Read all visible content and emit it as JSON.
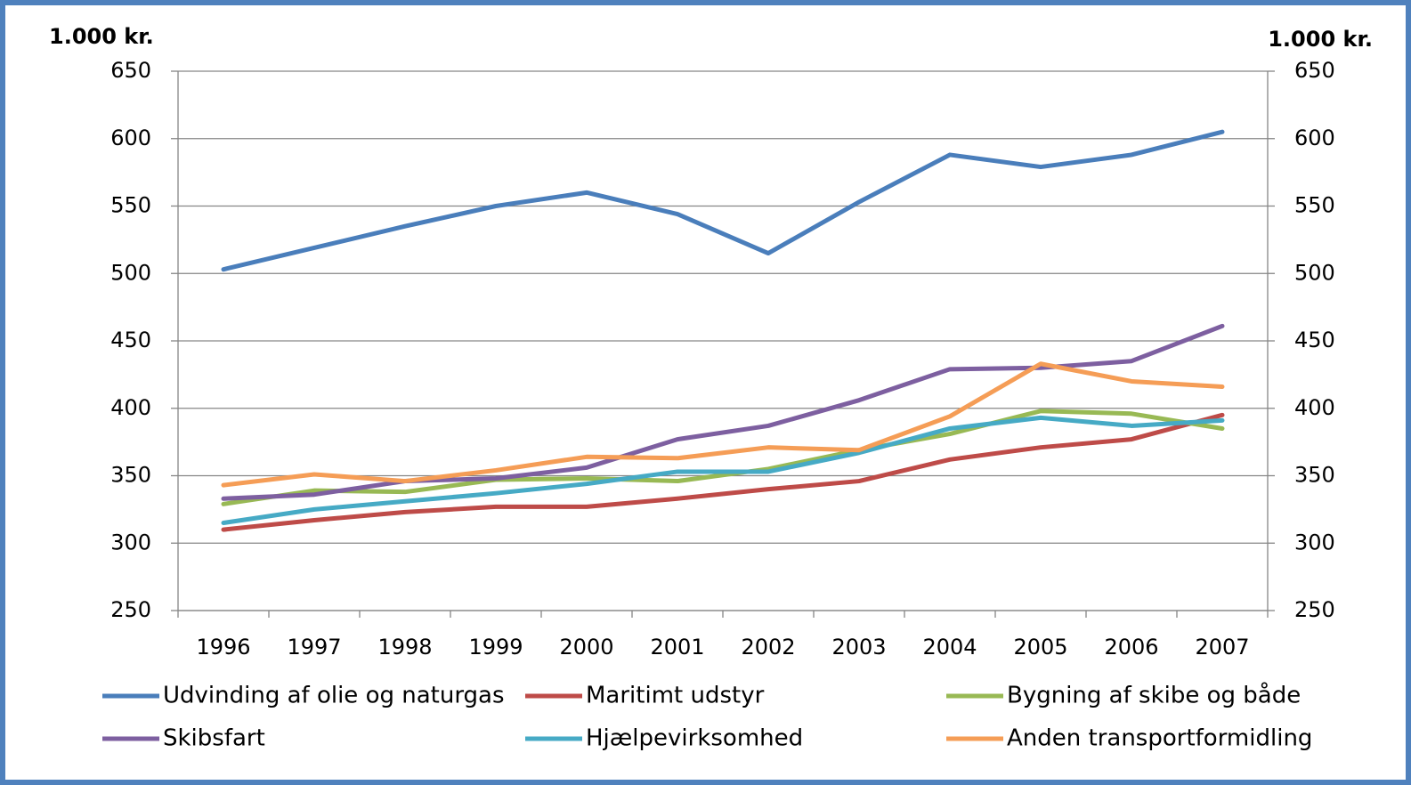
{
  "chart_data": {
    "type": "line",
    "y_label": "1.000 kr.",
    "y2_label": "1.000 kr.",
    "categories": [
      "1996",
      "1997",
      "1998",
      "1999",
      "2000",
      "2001",
      "2002",
      "2003",
      "2004",
      "2005",
      "2006",
      "2007"
    ],
    "series": [
      {
        "name": "Udvinding af olie og naturgas",
        "color": "#4a7ebb",
        "values": [
          503,
          519,
          535,
          550,
          560,
          544,
          515,
          553,
          588,
          579,
          588,
          605
        ]
      },
      {
        "name": "Maritimt udstyr",
        "color": "#be4b48",
        "values": [
          310,
          317,
          323,
          327,
          327,
          333,
          340,
          346,
          362,
          371,
          377,
          395
        ]
      },
      {
        "name": "Bygning af skibe og både",
        "color": "#98b954",
        "values": [
          329,
          339,
          338,
          347,
          348,
          346,
          355,
          369,
          381,
          398,
          396,
          385
        ]
      },
      {
        "name": "Skibsfart",
        "color": "#7d5fa0",
        "values": [
          333,
          336,
          346,
          348,
          356,
          377,
          387,
          406,
          429,
          430,
          435,
          461
        ]
      },
      {
        "name": "Hjælpevirksomhed",
        "color": "#46aac5",
        "values": [
          315,
          325,
          331,
          337,
          344,
          353,
          353,
          367,
          385,
          393,
          387,
          391
        ]
      },
      {
        "name": "Anden transportformidling",
        "color": "#f59d56",
        "values": [
          343,
          351,
          346,
          354,
          364,
          363,
          371,
          369,
          394,
          433,
          420,
          416
        ]
      }
    ],
    "ylim": [
      250,
      650
    ],
    "yticks": [
      250,
      300,
      350,
      400,
      450,
      500,
      550,
      600,
      650
    ],
    "y2lim": [
      250,
      650
    ],
    "y2ticks": [
      250,
      300,
      350,
      400,
      450,
      500,
      550,
      600,
      650
    ],
    "grid": true
  }
}
